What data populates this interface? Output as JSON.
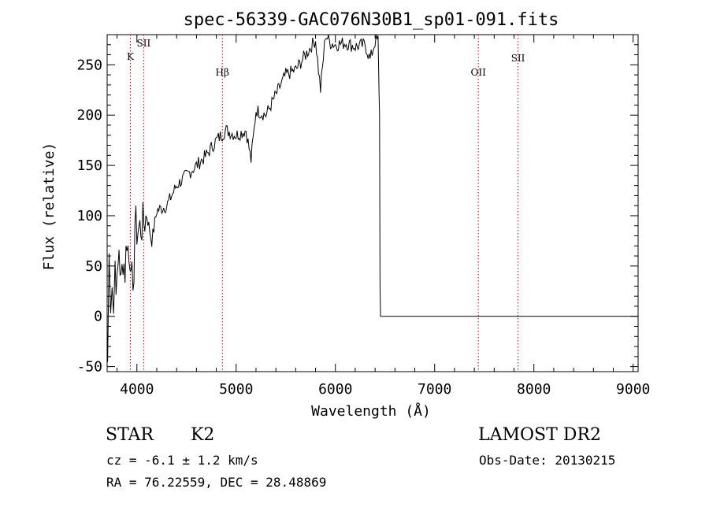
{
  "chart_data": {
    "type": "line",
    "title": "spec-56339-GAC076N30B1_sp01-091.fits",
    "xlabel": "Wavelength (Å)",
    "ylabel": "Flux (relative)",
    "xlim": [
      3700,
      9050
    ],
    "ylim": [
      -55,
      280
    ],
    "xticks": [
      4000,
      5000,
      6000,
      7000,
      8000,
      9000
    ],
    "yticks": [
      -50,
      0,
      50,
      100,
      150,
      200,
      250
    ],
    "grid": false,
    "line_color": "#000000",
    "marker_color": "#cc0000",
    "series": [
      {
        "x": [
          3705,
          3720,
          3735,
          3750,
          3765,
          3780,
          3800,
          3820,
          3840,
          3860,
          3880,
          3900,
          3920,
          3940,
          3960,
          3980,
          4000,
          4050,
          4100,
          4150,
          4200,
          4300,
          4400,
          4500,
          4600,
          4700,
          4800,
          4900,
          5000,
          5100,
          5150,
          5200,
          5300,
          5400,
          5500,
          5600,
          5700,
          5800,
          5850,
          5900,
          5950,
          6000,
          6100,
          6200,
          6300,
          6350,
          6400,
          6430,
          6440,
          6445,
          6450,
          6455,
          6470,
          6500,
          7000,
          8000,
          9000,
          9050
        ],
        "y": [
          -45,
          60,
          20,
          40,
          5,
          55,
          25,
          70,
          30,
          60,
          45,
          80,
          55,
          65,
          5,
          95,
          85,
          90,
          100,
          75,
          105,
          110,
          130,
          140,
          150,
          160,
          175,
          185,
          180,
          185,
          155,
          205,
          200,
          220,
          240,
          245,
          260,
          275,
          225,
          280,
          272,
          270,
          272,
          268,
          270,
          255,
          273,
          275,
          220,
          200,
          30,
          0,
          0,
          0,
          0,
          0,
          0,
          0
        ]
      }
    ],
    "lines": [
      {
        "label": "K",
        "x": 3934
      },
      {
        "label": "SII",
        "x": 4068
      },
      {
        "label": "Hβ",
        "x": 4861
      },
      {
        "label": "OII",
        "x": 7440
      },
      {
        "label": "SII",
        "x": 7840
      }
    ]
  },
  "info": {
    "class_type": "STAR",
    "subclass": "K2",
    "survey": "LAMOST DR2",
    "cz": "cz = -6.1 ± 1.2 km/s",
    "obs_date": "Obs-Date: 20130215",
    "radec": "RA =  76.22559, DEC =  28.48869"
  }
}
